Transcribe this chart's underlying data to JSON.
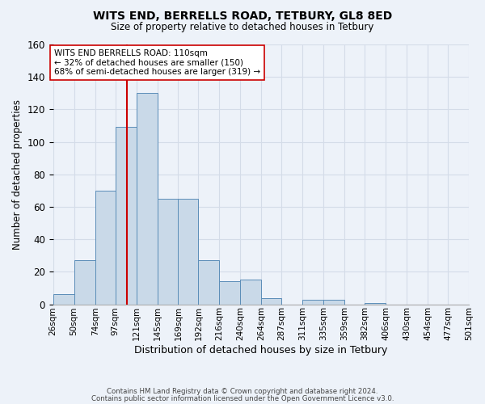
{
  "title": "WITS END, BERRELLS ROAD, TETBURY, GL8 8ED",
  "subtitle": "Size of property relative to detached houses in Tetbury",
  "xlabel": "Distribution of detached houses by size in Tetbury",
  "ylabel": "Number of detached properties",
  "bin_labels": [
    "26sqm",
    "50sqm",
    "74sqm",
    "97sqm",
    "121sqm",
    "145sqm",
    "169sqm",
    "192sqm",
    "216sqm",
    "240sqm",
    "264sqm",
    "287sqm",
    "311sqm",
    "335sqm",
    "359sqm",
    "382sqm",
    "406sqm",
    "430sqm",
    "454sqm",
    "477sqm",
    "501sqm"
  ],
  "bin_edges": [
    26,
    50,
    74,
    97,
    121,
    145,
    169,
    192,
    216,
    240,
    264,
    287,
    311,
    335,
    359,
    382,
    406,
    430,
    454,
    477,
    501
  ],
  "bar_heights": [
    6,
    27,
    70,
    109,
    130,
    65,
    65,
    27,
    14,
    15,
    4,
    0,
    3,
    3,
    0,
    1,
    0,
    0,
    0,
    0,
    2
  ],
  "bar_color": "#c9d9e8",
  "bar_edge_color": "#5b8db8",
  "property_value": 110,
  "vline_color": "#cc0000",
  "annotation_text": "WITS END BERRELLS ROAD: 110sqm\n← 32% of detached houses are smaller (150)\n68% of semi-detached houses are larger (319) →",
  "annotation_box_edge": "#cc0000",
  "annotation_box_face": "#ffffff",
  "ylim": [
    0,
    160
  ],
  "yticks": [
    0,
    20,
    40,
    60,
    80,
    100,
    120,
    140,
    160
  ],
  "grid_color": "#d4dce8",
  "background_color": "#edf2f9",
  "footer_line1": "Contains HM Land Registry data © Crown copyright and database right 2024.",
  "footer_line2": "Contains public sector information licensed under the Open Government Licence v3.0."
}
